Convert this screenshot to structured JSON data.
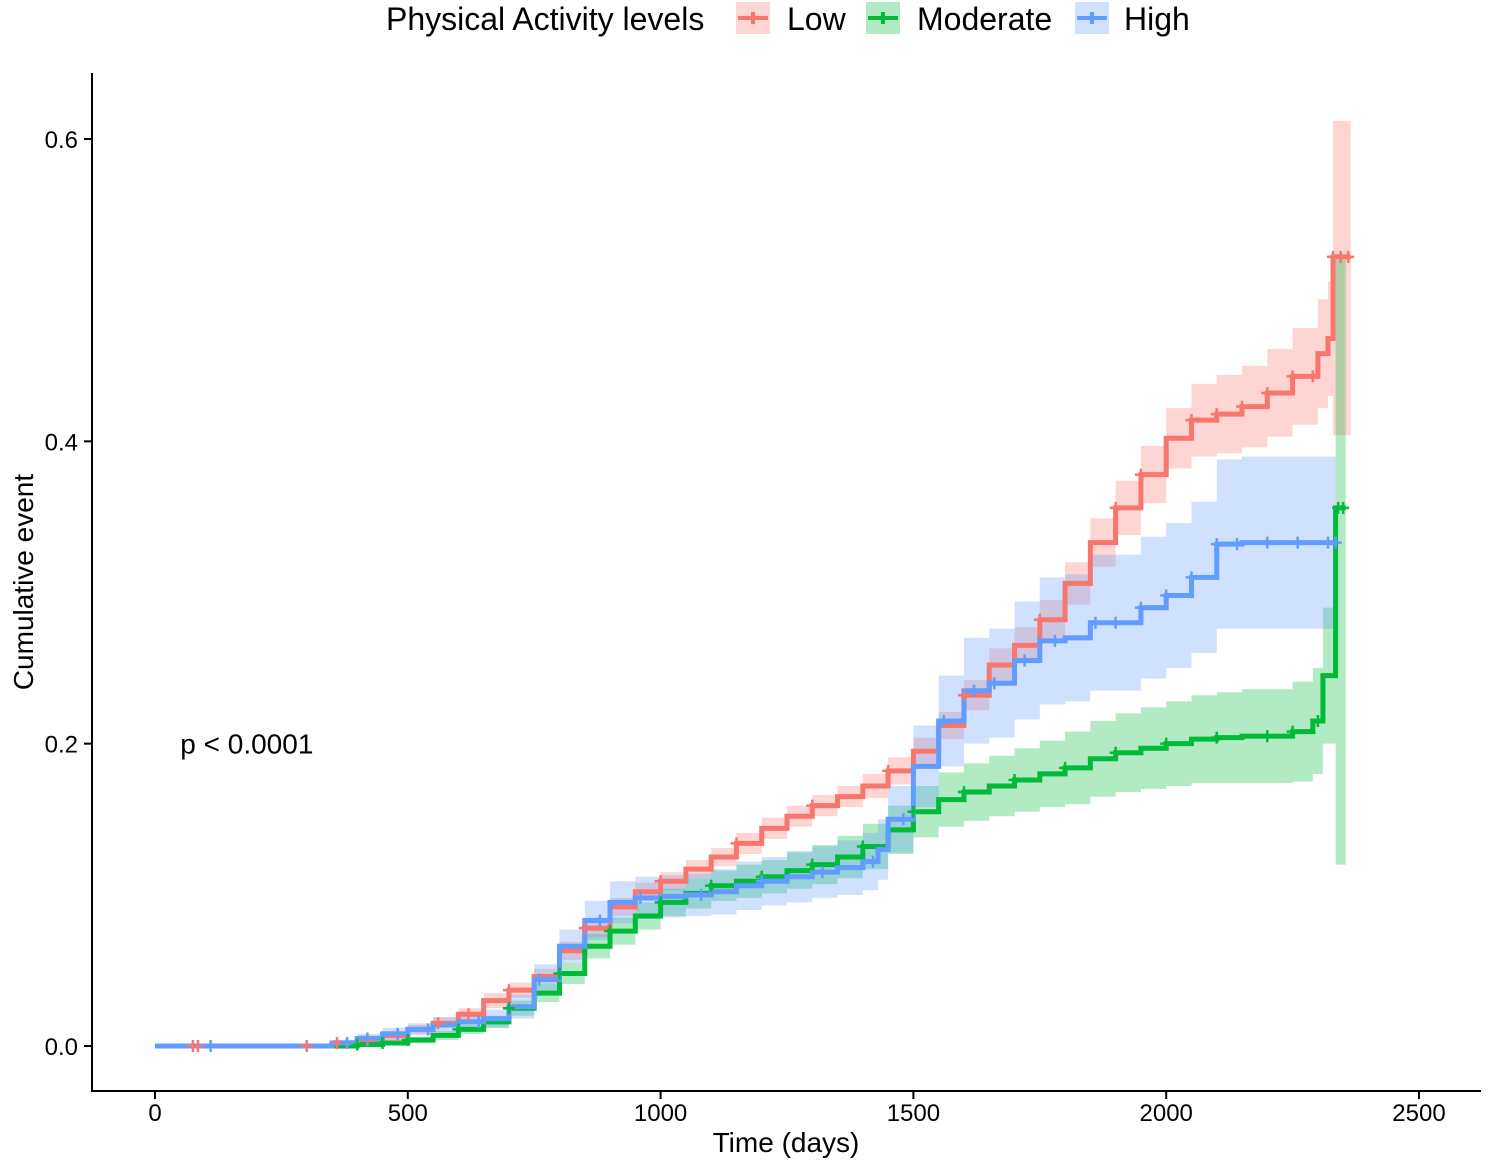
{
  "chart_data": {
    "type": "line",
    "chart_style": "step cumulative-incidence curves with confidence bands and censor marks",
    "xlabel": "Time (days)",
    "ylabel": "Cumulative event",
    "xlim": [
      -125,
      2625
    ],
    "ylim": [
      -0.03,
      0.645
    ],
    "x_ticks": [
      0,
      500,
      1000,
      1500,
      2000,
      2500
    ],
    "x_tick_labels": [
      "0",
      "500",
      "1000",
      "1500",
      "2000",
      "2500"
    ],
    "y_ticks": [
      0.0,
      0.2,
      0.4,
      0.6
    ],
    "y_tick_labels": [
      "0.0",
      "0.2",
      "0.4",
      "0.6"
    ],
    "grid": false,
    "legend": {
      "title": "Physical Activity levels",
      "placement": "top",
      "entries": [
        "Low",
        "Moderate",
        "High"
      ]
    },
    "annotation": "p < 0.0001",
    "annotation_position": {
      "x": 50,
      "y": 0.2
    },
    "series": [
      {
        "name": "Low",
        "color": "#F8766D",
        "x": [
          0,
          350,
          400,
          450,
          500,
          550,
          600,
          650,
          700,
          750,
          800,
          850,
          900,
          950,
          1000,
          1050,
          1100,
          1150,
          1200,
          1250,
          1300,
          1350,
          1400,
          1450,
          1500,
          1550,
          1600,
          1650,
          1700,
          1750,
          1800,
          1850,
          1900,
          1950,
          2000,
          2050,
          2100,
          2150,
          2200,
          2250,
          2300,
          2320,
          2330,
          2365
        ],
        "y": [
          0,
          0.002,
          0.004,
          0.007,
          0.011,
          0.015,
          0.021,
          0.03,
          0.037,
          0.046,
          0.063,
          0.078,
          0.092,
          0.102,
          0.109,
          0.117,
          0.125,
          0.134,
          0.144,
          0.152,
          0.159,
          0.165,
          0.172,
          0.182,
          0.195,
          0.212,
          0.232,
          0.252,
          0.265,
          0.282,
          0.306,
          0.333,
          0.356,
          0.378,
          0.402,
          0.414,
          0.418,
          0.423,
          0.432,
          0.443,
          0.458,
          0.468,
          0.522,
          0.522
        ],
        "lower": [
          0,
          0.0,
          0.001,
          0.004,
          0.008,
          0.012,
          0.017,
          0.025,
          0.032,
          0.041,
          0.057,
          0.072,
          0.086,
          0.096,
          0.103,
          0.111,
          0.119,
          0.127,
          0.137,
          0.145,
          0.152,
          0.158,
          0.164,
          0.173,
          0.186,
          0.203,
          0.222,
          0.241,
          0.253,
          0.269,
          0.292,
          0.317,
          0.338,
          0.359,
          0.382,
          0.39,
          0.392,
          0.396,
          0.403,
          0.411,
          0.422,
          0.43,
          0.404,
          0.404
        ],
        "upper": [
          0,
          0.004,
          0.007,
          0.01,
          0.014,
          0.019,
          0.025,
          0.035,
          0.042,
          0.051,
          0.069,
          0.084,
          0.098,
          0.108,
          0.115,
          0.123,
          0.131,
          0.141,
          0.151,
          0.159,
          0.166,
          0.172,
          0.18,
          0.191,
          0.204,
          0.221,
          0.242,
          0.263,
          0.277,
          0.295,
          0.32,
          0.349,
          0.374,
          0.397,
          0.422,
          0.438,
          0.444,
          0.45,
          0.461,
          0.475,
          0.494,
          0.506,
          0.612,
          0.612
        ],
        "censor_x": [
          75,
          85,
          300,
          360,
          380,
          420,
          480,
          560,
          620,
          700,
          850,
          1000,
          1150,
          1300,
          1450,
          1600,
          1750,
          1900,
          1950,
          2050,
          2100,
          2150,
          2200,
          2250,
          2290,
          2330,
          2345,
          2360
        ]
      },
      {
        "name": "Moderate",
        "color": "#00BA38",
        "x": [
          0,
          350,
          400,
          450,
          500,
          550,
          600,
          650,
          700,
          750,
          800,
          850,
          900,
          950,
          1000,
          1050,
          1100,
          1150,
          1200,
          1250,
          1300,
          1350,
          1400,
          1450,
          1500,
          1550,
          1600,
          1650,
          1700,
          1750,
          1800,
          1850,
          1900,
          1950,
          2000,
          2050,
          2100,
          2150,
          2200,
          2250,
          2290,
          2310,
          2335,
          2355
        ],
        "y": [
          0,
          0.0,
          0.001,
          0.002,
          0.004,
          0.007,
          0.011,
          0.016,
          0.025,
          0.035,
          0.048,
          0.066,
          0.076,
          0.086,
          0.095,
          0.101,
          0.106,
          0.109,
          0.112,
          0.116,
          0.12,
          0.125,
          0.132,
          0.143,
          0.155,
          0.163,
          0.168,
          0.172,
          0.176,
          0.18,
          0.184,
          0.19,
          0.194,
          0.197,
          0.2,
          0.203,
          0.204,
          0.205,
          0.205,
          0.208,
          0.215,
          0.245,
          0.356,
          0.356
        ],
        "lower": [
          0,
          0.0,
          0.0,
          0.001,
          0.002,
          0.004,
          0.008,
          0.012,
          0.02,
          0.029,
          0.041,
          0.058,
          0.067,
          0.077,
          0.086,
          0.091,
          0.096,
          0.098,
          0.101,
          0.104,
          0.107,
          0.111,
          0.117,
          0.127,
          0.138,
          0.145,
          0.149,
          0.152,
          0.155,
          0.158,
          0.16,
          0.165,
          0.168,
          0.17,
          0.172,
          0.174,
          0.174,
          0.174,
          0.174,
          0.175,
          0.18,
          0.2,
          0.12,
          0.12
        ],
        "upper": [
          0,
          0.001,
          0.002,
          0.004,
          0.006,
          0.01,
          0.014,
          0.02,
          0.03,
          0.041,
          0.055,
          0.074,
          0.085,
          0.095,
          0.104,
          0.111,
          0.116,
          0.12,
          0.123,
          0.128,
          0.133,
          0.139,
          0.147,
          0.159,
          0.172,
          0.181,
          0.187,
          0.192,
          0.197,
          0.202,
          0.208,
          0.215,
          0.22,
          0.224,
          0.228,
          0.232,
          0.234,
          0.236,
          0.236,
          0.241,
          0.25,
          0.29,
          0.52,
          0.52
        ],
        "censor_x": [
          400,
          450,
          500,
          600,
          700,
          800,
          900,
          1000,
          1100,
          1200,
          1300,
          1400,
          1500,
          1600,
          1700,
          1800,
          1900,
          2000,
          2100,
          2200,
          2250,
          2300,
          2340,
          2350
        ]
      },
      {
        "name": "High",
        "color": "#619CFF",
        "x": [
          0,
          350,
          400,
          450,
          500,
          550,
          600,
          650,
          700,
          750,
          800,
          850,
          900,
          950,
          1000,
          1050,
          1100,
          1150,
          1200,
          1250,
          1300,
          1350,
          1400,
          1430,
          1450,
          1500,
          1550,
          1600,
          1650,
          1700,
          1750,
          1800,
          1850,
          1900,
          1950,
          2000,
          2050,
          2100,
          2150,
          2200,
          2250,
          2300,
          2335
        ],
        "y": [
          0,
          0.002,
          0.005,
          0.008,
          0.011,
          0.014,
          0.016,
          0.018,
          0.026,
          0.044,
          0.066,
          0.083,
          0.095,
          0.098,
          0.099,
          0.1,
          0.102,
          0.106,
          0.109,
          0.112,
          0.115,
          0.118,
          0.122,
          0.13,
          0.15,
          0.185,
          0.215,
          0.235,
          0.24,
          0.255,
          0.268,
          0.27,
          0.28,
          0.28,
          0.29,
          0.298,
          0.31,
          0.332,
          0.333,
          0.333,
          0.333,
          0.333,
          0.333
        ],
        "lower": [
          0,
          0.0,
          0.002,
          0.004,
          0.007,
          0.009,
          0.011,
          0.012,
          0.018,
          0.034,
          0.055,
          0.07,
          0.081,
          0.084,
          0.085,
          0.086,
          0.087,
          0.09,
          0.093,
          0.095,
          0.098,
          0.1,
          0.103,
          0.11,
          0.128,
          0.158,
          0.185,
          0.2,
          0.204,
          0.216,
          0.226,
          0.228,
          0.235,
          0.235,
          0.243,
          0.25,
          0.26,
          0.276,
          0.276,
          0.276,
          0.276,
          0.276,
          0.276
        ],
        "upper": [
          0,
          0.004,
          0.008,
          0.012,
          0.015,
          0.019,
          0.021,
          0.024,
          0.034,
          0.054,
          0.077,
          0.096,
          0.109,
          0.112,
          0.113,
          0.114,
          0.117,
          0.122,
          0.125,
          0.129,
          0.132,
          0.136,
          0.141,
          0.15,
          0.172,
          0.212,
          0.245,
          0.27,
          0.276,
          0.294,
          0.31,
          0.312,
          0.325,
          0.325,
          0.337,
          0.346,
          0.36,
          0.388,
          0.39,
          0.39,
          0.39,
          0.39,
          0.39
        ],
        "censor_x": [
          110,
          380,
          420,
          480,
          540,
          640,
          760,
          880,
          960,
          1080,
          1200,
          1320,
          1420,
          1480,
          1560,
          1620,
          1660,
          1720,
          1780,
          1860,
          1900,
          1950,
          2000,
          2050,
          2100,
          2140,
          2200,
          2260,
          2320,
          2335
        ]
      }
    ]
  }
}
